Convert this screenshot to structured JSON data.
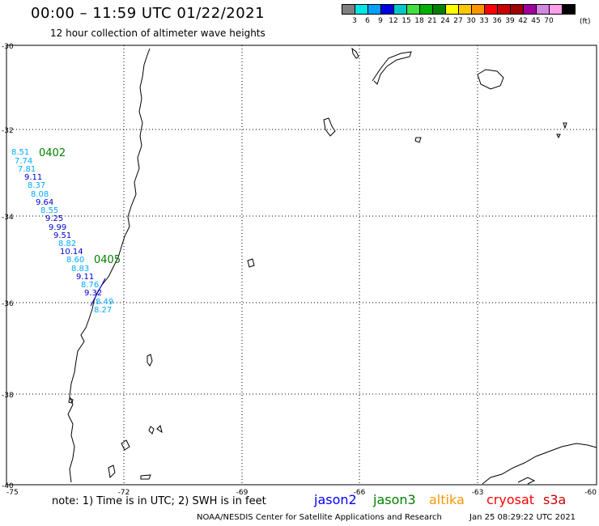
{
  "header": {
    "title": "00:00 – 11:59 UTC 01/22/2021",
    "subtitle": "12 hour collection of altimeter wave heights"
  },
  "legend": {
    "colors": [
      "#808080",
      "#00e5e5",
      "#00a0ff",
      "#0000e0",
      "#00c8c8",
      "#40e040",
      "#00b000",
      "#008000",
      "#ffff00",
      "#ffc800",
      "#ff9600",
      "#ff0000",
      "#c80000",
      "#a00000",
      "#a000a0",
      "#d088e0",
      "#ffa0e8",
      "#000000"
    ],
    "labels": [
      "3",
      "6",
      "9",
      "12",
      "15",
      "18",
      "21",
      "24",
      "27",
      "30",
      "33",
      "36",
      "39",
      "42",
      "45",
      "70"
    ],
    "unit": "(ft)"
  },
  "map": {
    "lat_labels": [
      "-30",
      "-32",
      "-34",
      "-36",
      "-38",
      "-40"
    ],
    "lon_labels": [
      "-75",
      "-72",
      "-69",
      "-66",
      "-63",
      "-60"
    ],
    "pass_labels": [
      {
        "text": "0402",
        "color": "#008000"
      },
      {
        "text": "0405",
        "color": "#008000"
      }
    ],
    "observations": [
      {
        "value": "8.51",
        "color": "#00aaff"
      },
      {
        "value": "7.74",
        "color": "#00aaff"
      },
      {
        "value": "7.81",
        "color": "#00aaff"
      },
      {
        "value": "9.11",
        "color": "#0000cc"
      },
      {
        "value": "8.37",
        "color": "#00aaff"
      },
      {
        "value": "8.08",
        "color": "#00aaff"
      },
      {
        "value": "9.64",
        "color": "#0000cc"
      },
      {
        "value": "8.55",
        "color": "#00aaff"
      },
      {
        "value": "9.25",
        "color": "#0000cc"
      },
      {
        "value": "9.99",
        "color": "#0000cc"
      },
      {
        "value": "9.51",
        "color": "#0000cc"
      },
      {
        "value": "8.82",
        "color": "#00aaff"
      },
      {
        "value": "10.14",
        "color": "#0000cc"
      },
      {
        "value": "8.60",
        "color": "#00aaff"
      },
      {
        "value": "8.83",
        "color": "#00aaff"
      },
      {
        "value": "9.11",
        "color": "#0000cc"
      },
      {
        "value": "8.76",
        "color": "#00aaff"
      },
      {
        "value": "9.32",
        "color": "#0000cc"
      },
      {
        "value": "8.49",
        "color": "#00aaff"
      },
      {
        "value": "8.27",
        "color": "#00aaff"
      }
    ]
  },
  "footer": {
    "note": "note:  1) Time is in UTC; 2) SWH is in feet",
    "satellites": [
      {
        "name": "jason2",
        "color": "#0000ff"
      },
      {
        "name": "jason3",
        "color": "#008000"
      },
      {
        "name": "altika",
        "color": "#ff9600"
      },
      {
        "name": "cryosat",
        "color": "#ff0000"
      },
      {
        "name": "s3a",
        "color": "#c80000"
      }
    ],
    "credit": "NOAA/NESDIS Center for Satellite Applications and Research",
    "timestamp": "Jan 25 08:29:22 UTC 2021"
  }
}
